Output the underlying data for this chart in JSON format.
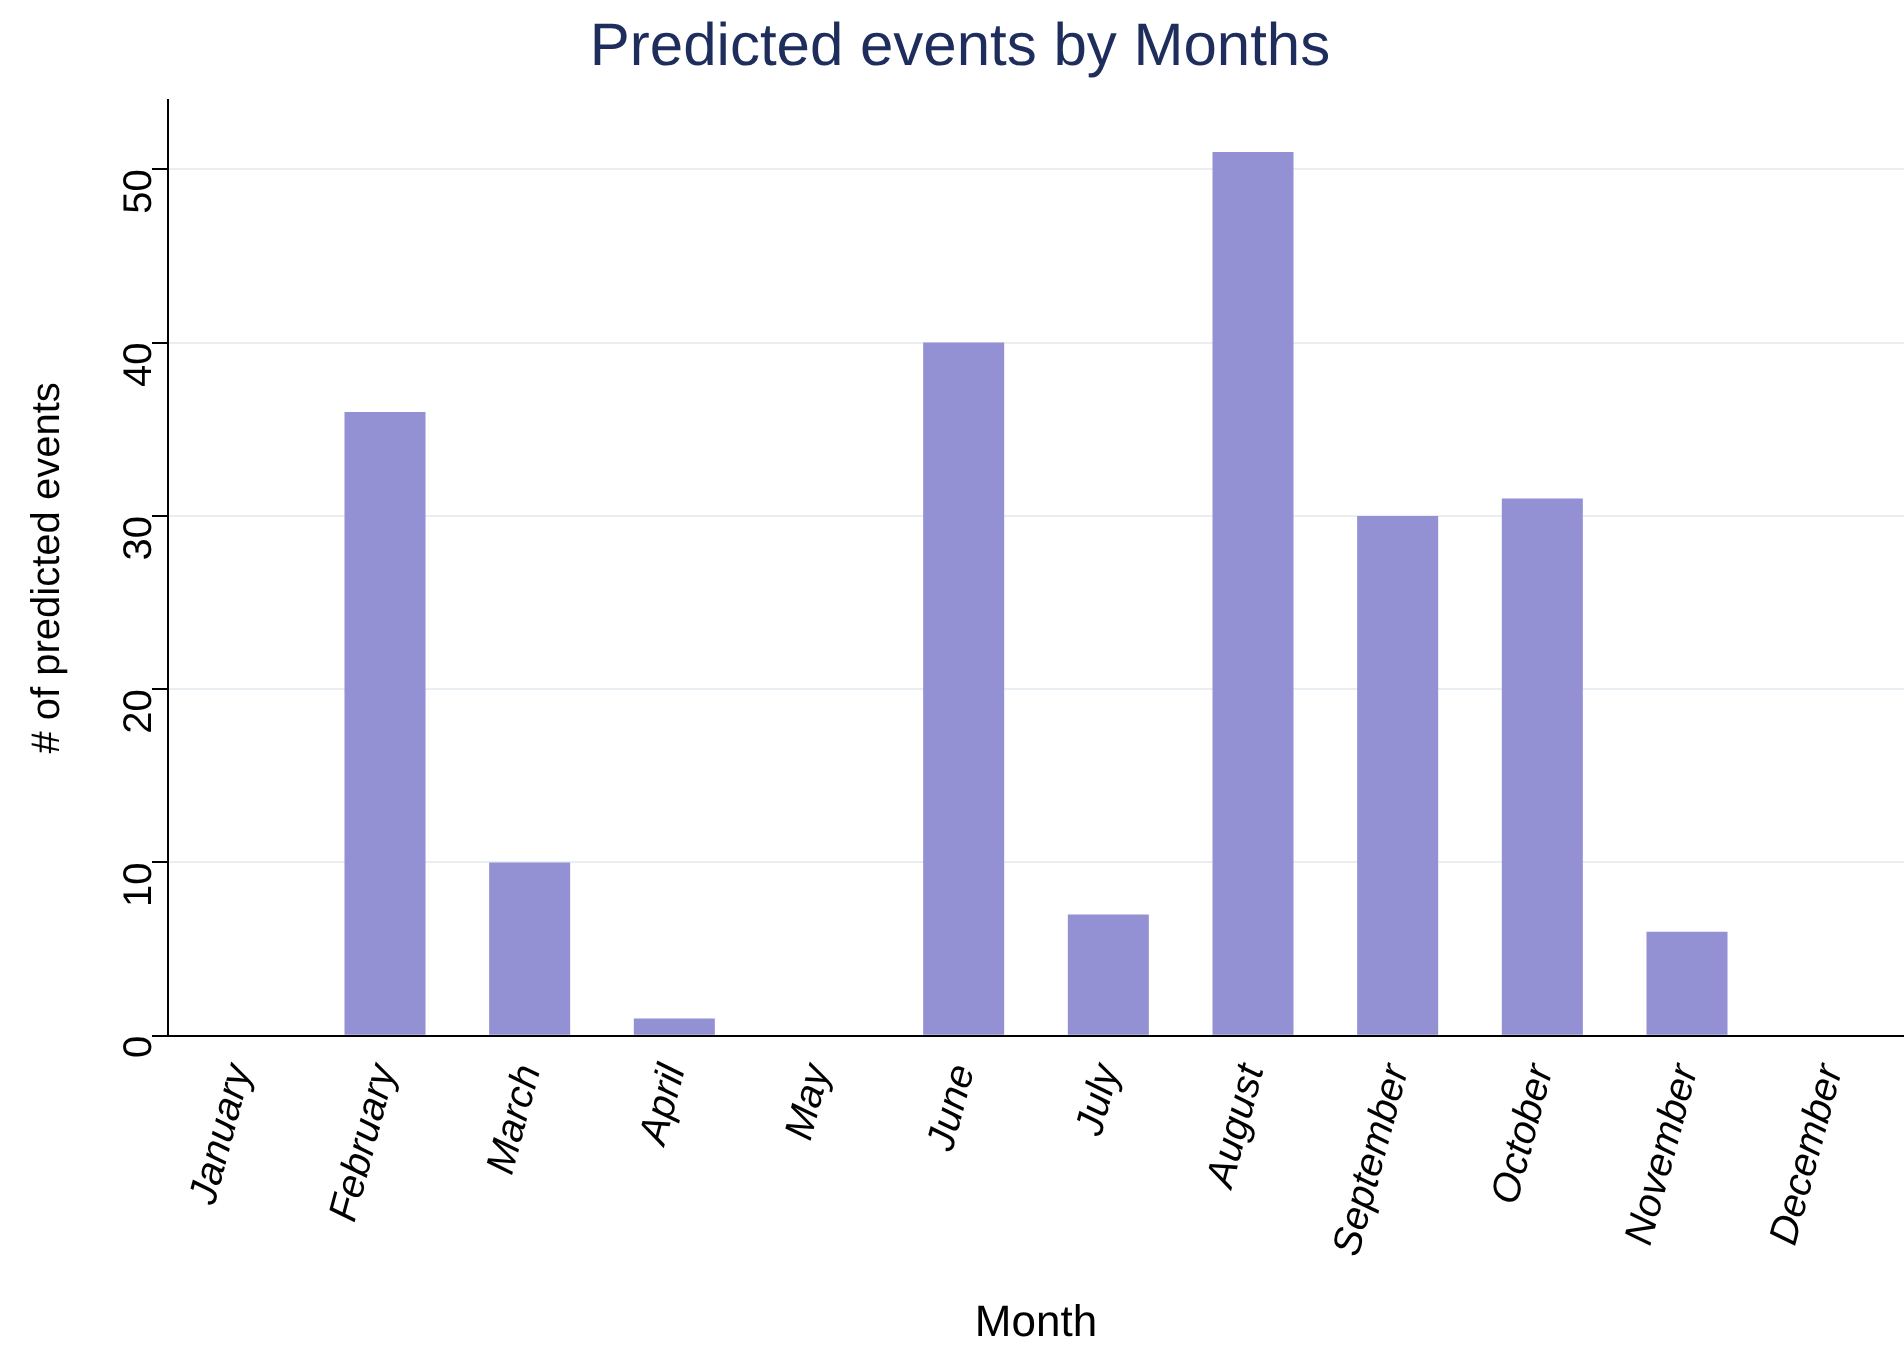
{
  "chart_data": {
    "type": "bar",
    "title": "Predicted events by Months",
    "xlabel": "Month",
    "ylabel": "# of predicted events",
    "categories": [
      "January",
      "February",
      "March",
      "April",
      "May",
      "June",
      "July",
      "August",
      "September",
      "October",
      "November",
      "December"
    ],
    "values": [
      0,
      36,
      10,
      1,
      0,
      40,
      7,
      51,
      30,
      31,
      6,
      0
    ],
    "color": "#9490d4",
    "ylim": [
      0,
      54
    ],
    "yticks": [
      0,
      10,
      20,
      30,
      40,
      50
    ],
    "grid": "y",
    "legend": false
  }
}
